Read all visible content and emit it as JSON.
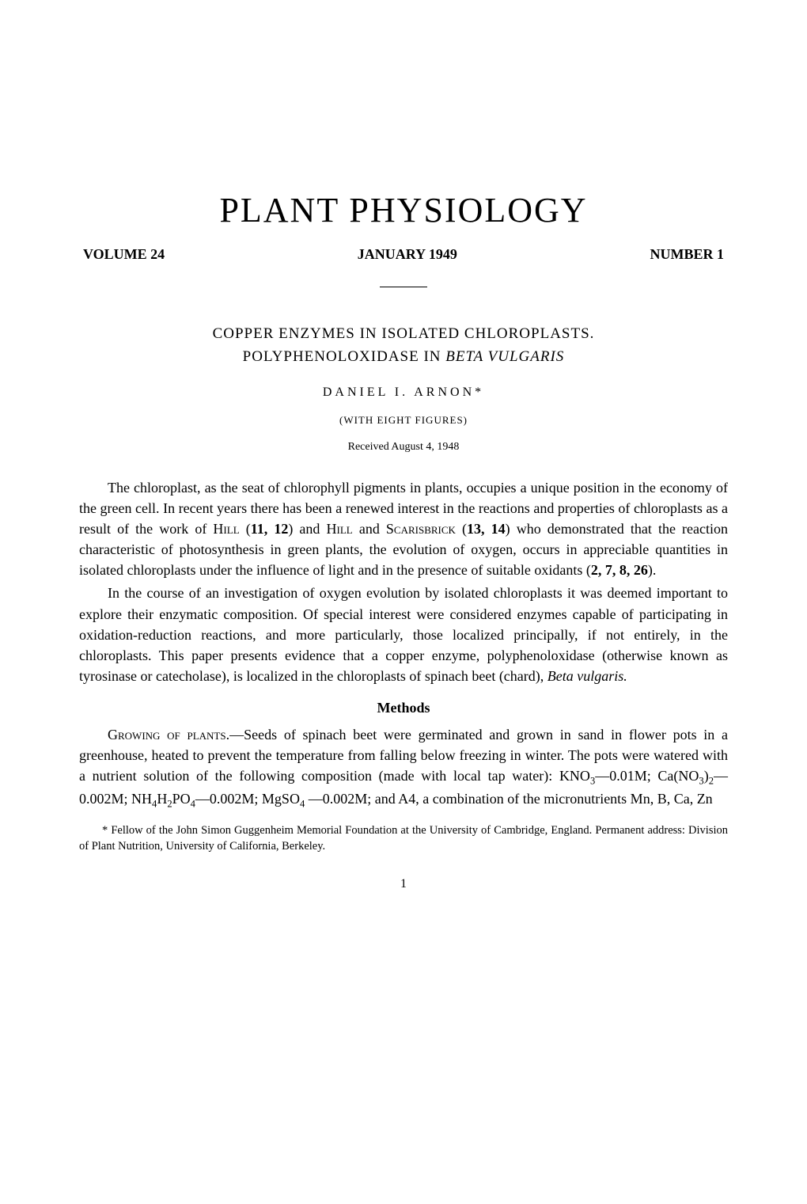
{
  "journal_title": "PLANT PHYSIOLOGY",
  "issue": {
    "volume": "VOLUME 24",
    "date": "JANUARY 1949",
    "number": "NUMBER 1"
  },
  "article": {
    "title_line1": "COPPER ENZYMES IN ISOLATED CHLOROPLASTS.",
    "title_line2_prefix": "POLYPHENOLOXIDASE IN ",
    "title_line2_italic": "BETA VULGARIS",
    "author": "DANIEL I. ARNON*",
    "figures_note": "(WITH EIGHT FIGURES)",
    "received": "Received August 4, 1948"
  },
  "paragraphs": {
    "p1": "The chloroplast, as the seat of chlorophyll pigments in plants, occupies a unique position in the economy of the green cell. In recent years there has been a renewed interest in the reactions and properties of chloroplasts as a result of the work of HILL (11, 12) and HILL and SCARISBRICK (13, 14) who demonstrated that the reaction characteristic of photosynthesis in green plants, the evolution of oxygen, occurs in appreciable quantities in isolated chloroplasts under the influence of light and in the presence of suitable oxidants (2, 7, 8, 26).",
    "p2_prefix": "In the course of an investigation of oxygen evolution by isolated chloroplasts it was deemed important to explore their enzymatic composition. Of special interest were considered enzymes capable of participating in oxidation-reduction reactions, and more particularly, those localized principally, if not entirely, in the chloroplasts. This paper presents evidence that a copper enzyme, polyphenoloxidase (otherwise known as tyrosinase or catecholase), is localized in the chloroplasts of spinach beet (chard), ",
    "p2_italic": "Beta vulgaris."
  },
  "methods": {
    "heading": "Methods",
    "p1_smallcaps": "Growing of plants.",
    "p1_text": "—Seeds of spinach beet were germinated and grown in sand in flower pots in a greenhouse, heated to prevent the temperature from falling below freezing in winter. The pots were watered with a nutrient solution of the following composition (made with local tap water): KNO₃—0.01M; Ca(NO₃)₂—0.002M; NH₄H₂PO₄—0.002M; MgSO₄—0.002M; and A4, a combination of the micronutrients Mn, B, Ca, Zn"
  },
  "footnote": "* Fellow of the John Simon Guggenheim Memorial Foundation at the University of Cambridge, England. Permanent address: Division of Plant Nutrition, University of California, Berkeley.",
  "page_number": "1",
  "colors": {
    "background": "#ffffff",
    "text": "#000000"
  },
  "typography": {
    "journal_title_fontsize": 44,
    "body_fontsize": 18,
    "footnote_fontsize": 14.5,
    "font_family": "Times New Roman"
  }
}
